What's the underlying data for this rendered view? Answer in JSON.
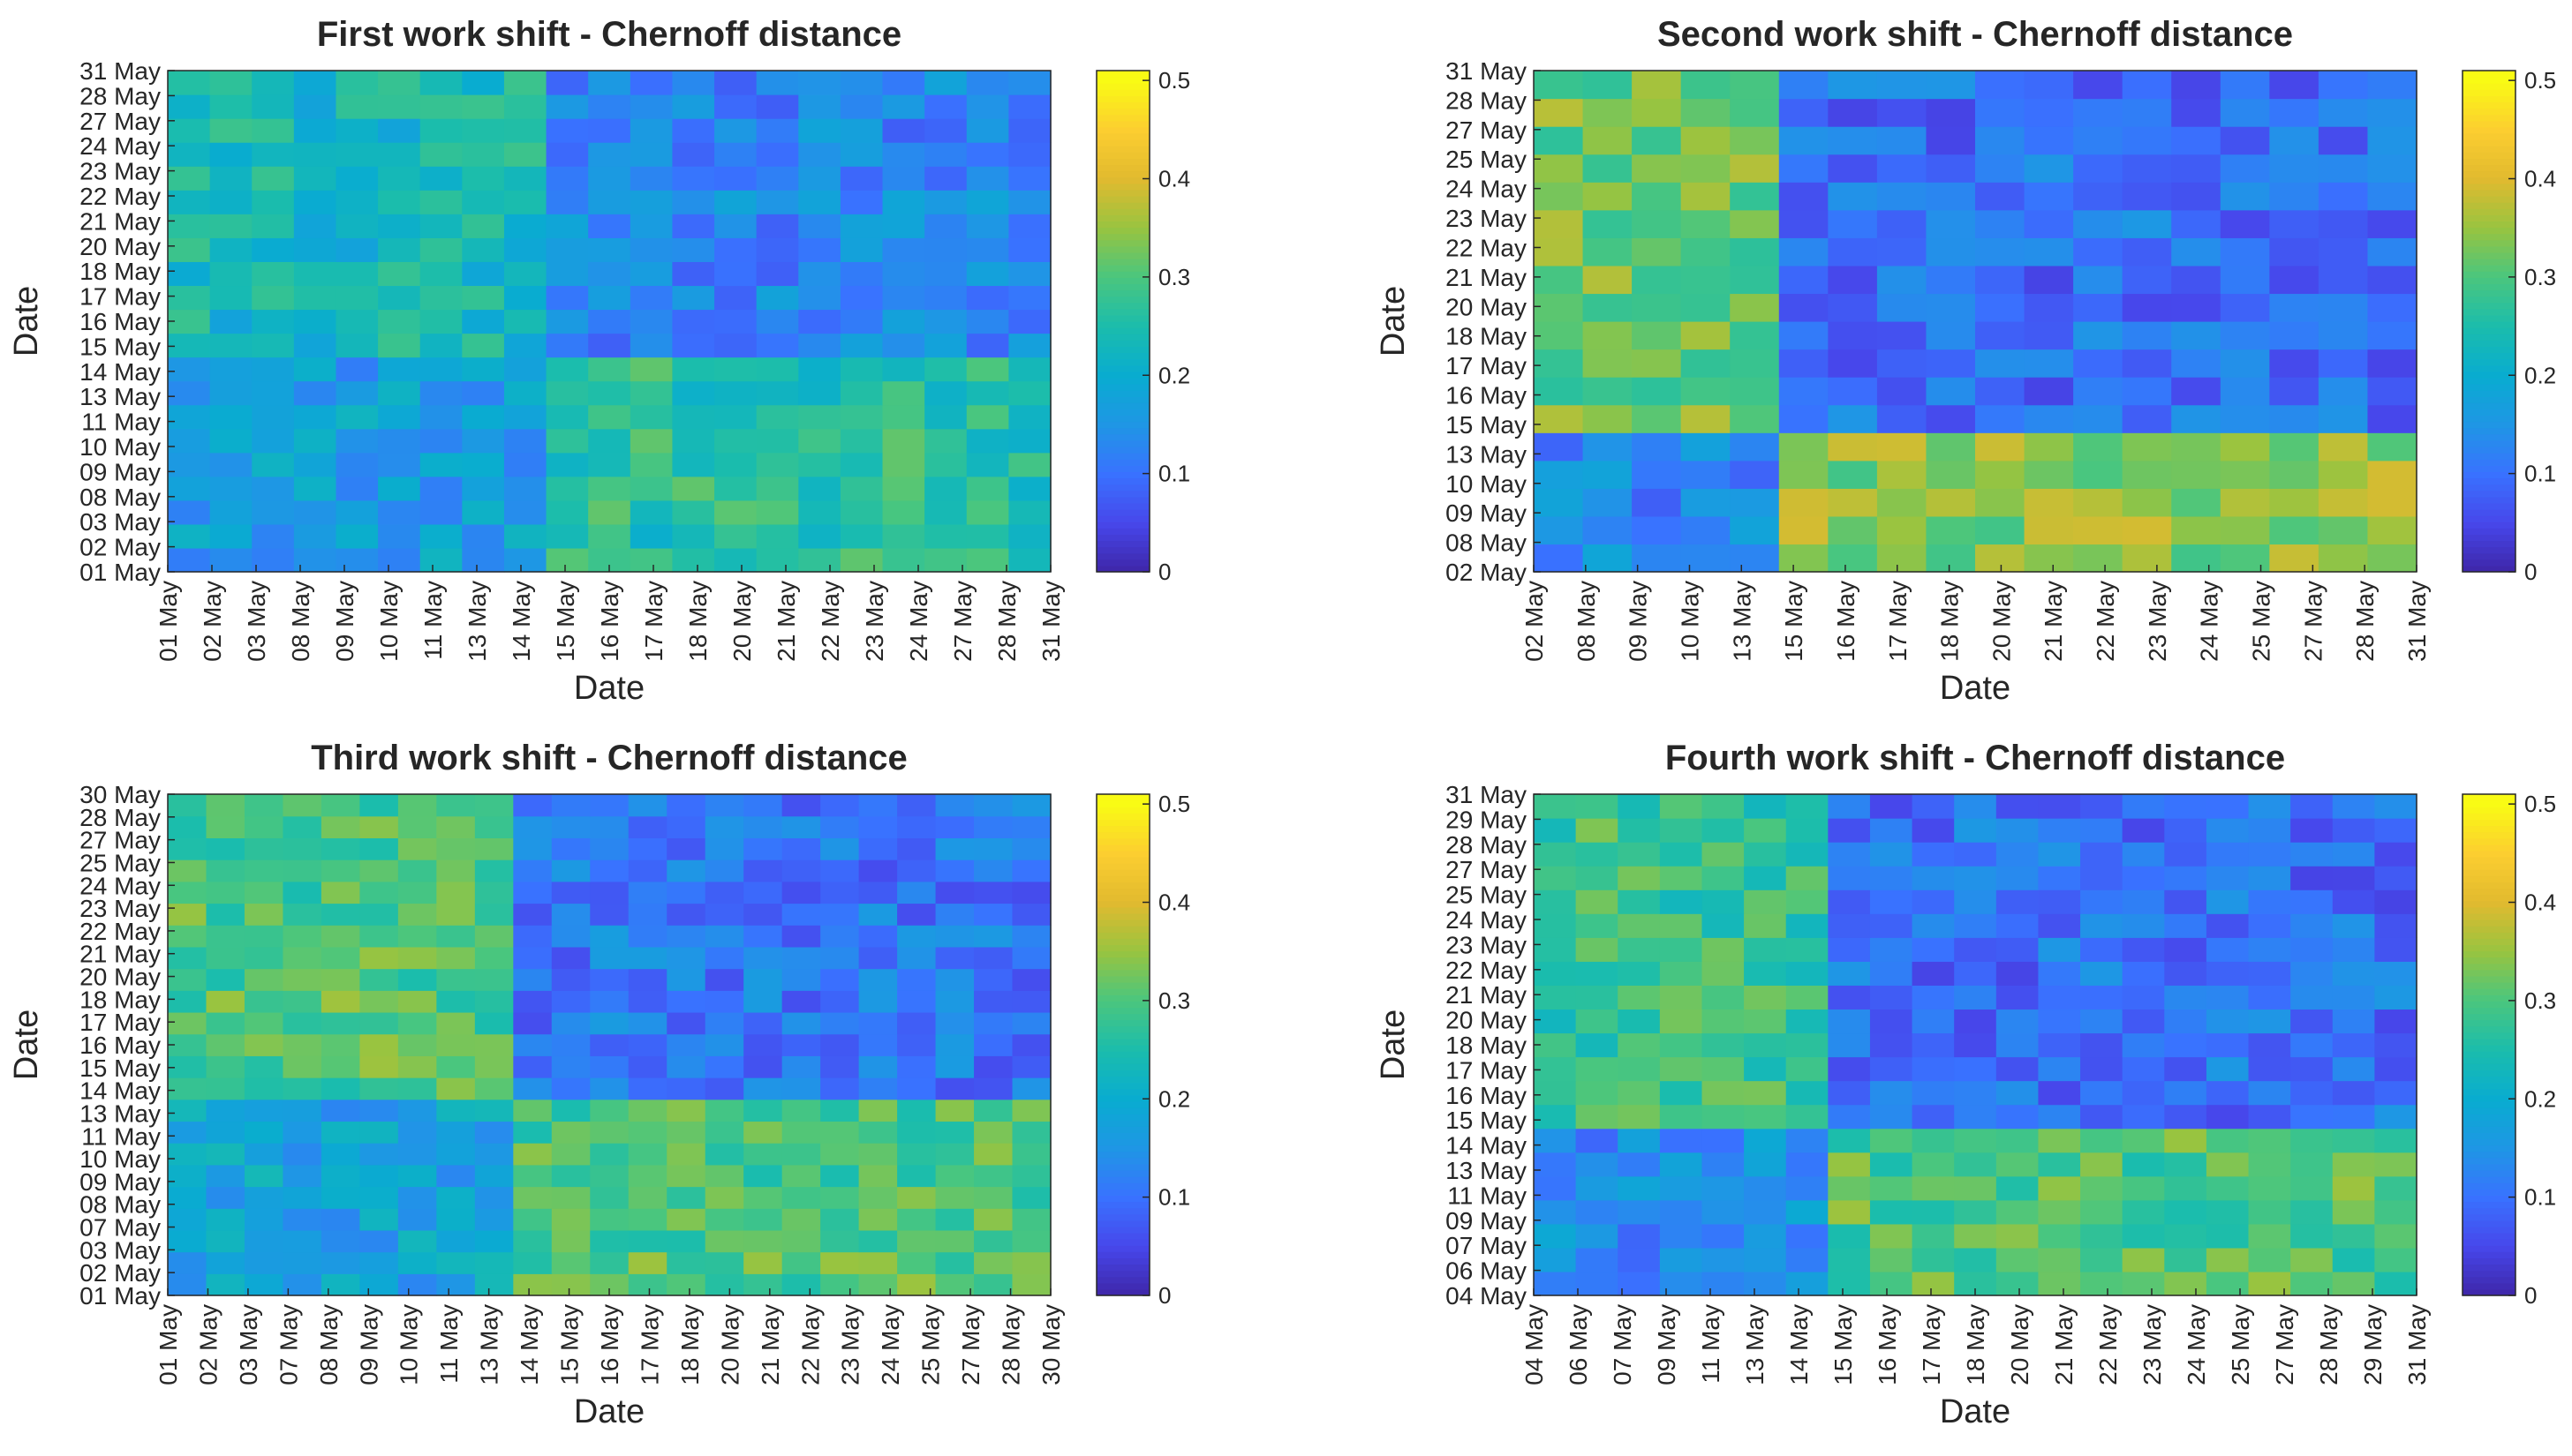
{
  "chart_data": [
    {
      "type": "heatmap",
      "title": "First work shift - Chernoff distance",
      "xlabel": "Date",
      "ylabel": "Date",
      "categories": [
        "01 May",
        "02 May",
        "03 May",
        "08 May",
        "09 May",
        "10 May",
        "11 May",
        "13 May",
        "14 May",
        "15 May",
        "16 May",
        "17 May",
        "18 May",
        "20 May",
        "21 May",
        "22 May",
        "23 May",
        "24 May",
        "27 May",
        "28 May",
        "31 May"
      ],
      "blocks": {
        "split": 9,
        "aa": 0.17,
        "ab": 0.26,
        "ba": 0.23,
        "bb": 0.13
      },
      "colorbar": {
        "min": 0,
        "max": 0.5,
        "ticks": [
          "0",
          "0.1",
          "0.2",
          "0.3",
          "0.4",
          "0.5"
        ]
      }
    },
    {
      "type": "heatmap",
      "title": "Second work shift - Chernoff distance",
      "xlabel": "Date",
      "ylabel": "Date",
      "categories": [
        "02 May",
        "08 May",
        "09 May",
        "10 May",
        "13 May",
        "15 May",
        "16 May",
        "17 May",
        "18 May",
        "20 May",
        "21 May",
        "22 May",
        "23 May",
        "24 May",
        "25 May",
        "27 May",
        "28 May",
        "31 May"
      ],
      "blocks": {
        "split": 5,
        "aa": 0.13,
        "ab": 0.34,
        "ba": 0.32,
        "bb": 0.1
      },
      "colorbar": {
        "min": 0,
        "max": 0.5,
        "ticks": [
          "0",
          "0.1",
          "0.2",
          "0.3",
          "0.4",
          "0.5"
        ]
      }
    },
    {
      "type": "heatmap",
      "title": "Third work shift - Chernoff distance",
      "xlabel": "Date",
      "ylabel": "Date",
      "categories": [
        "01 May",
        "02 May",
        "03 May",
        "07 May",
        "08 May",
        "09 May",
        "10 May",
        "11 May",
        "13 May",
        "14 May",
        "15 May",
        "16 May",
        "17 May",
        "18 May",
        "20 May",
        "21 May",
        "22 May",
        "23 May",
        "24 May",
        "25 May",
        "27 May",
        "28 May",
        "30 May"
      ],
      "blocks": {
        "split": 9,
        "aa": 0.18,
        "ab": 0.3,
        "ba": 0.3,
        "bb": 0.11
      },
      "colorbar": {
        "min": 0,
        "max": 0.5,
        "ticks": [
          "0",
          "0.1",
          "0.2",
          "0.3",
          "0.4",
          "0.5"
        ]
      }
    },
    {
      "type": "heatmap",
      "title": "Fourth work shift - Chernoff distance",
      "xlabel": "Date",
      "ylabel": "Date",
      "categories": [
        "04 May",
        "06 May",
        "07 May",
        "09 May",
        "11 May",
        "13 May",
        "14 May",
        "15 May",
        "16 May",
        "17 May",
        "18 May",
        "20 May",
        "21 May",
        "22 May",
        "23 May",
        "24 May",
        "25 May",
        "27 May",
        "28 May",
        "29 May",
        "31 May"
      ],
      "blocks": {
        "split": 7,
        "aa": 0.14,
        "ab": 0.3,
        "ba": 0.28,
        "bb": 0.1
      },
      "colorbar": {
        "min": 0,
        "max": 0.5,
        "ticks": [
          "0",
          "0.1",
          "0.2",
          "0.3",
          "0.4",
          "0.5"
        ]
      }
    }
  ]
}
